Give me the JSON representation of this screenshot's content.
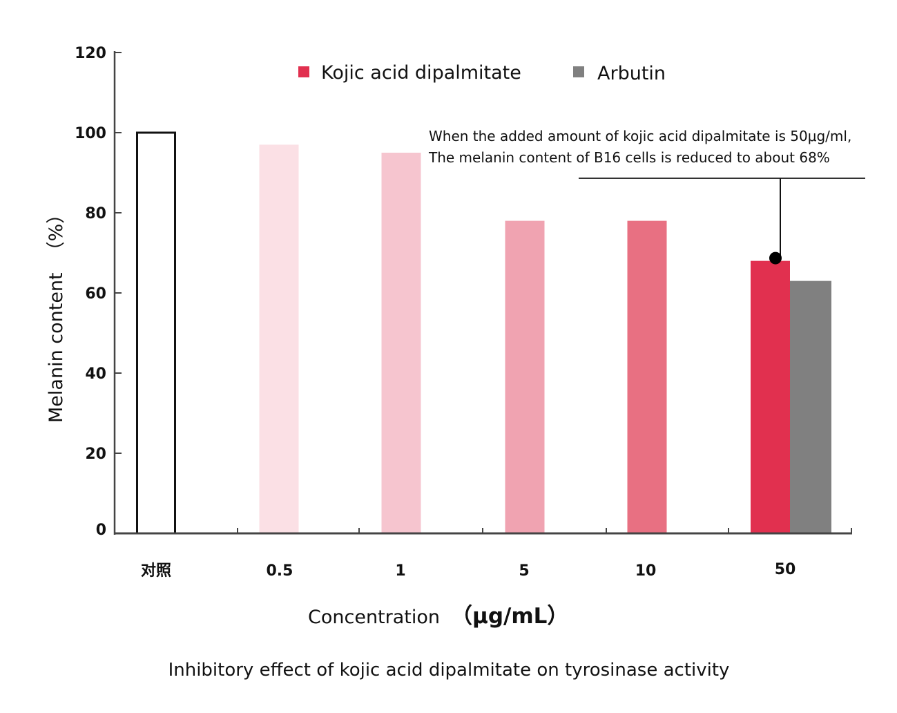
{
  "chart_data": {
    "type": "bar",
    "categories": [
      "对照",
      "0.5",
      "1",
      "5",
      "10",
      "50"
    ],
    "series": [
      {
        "name": "Kojic acid dipalmitate",
        "values": [
          100,
          97,
          95,
          78,
          78,
          68
        ],
        "colors": [
          "#ffffff",
          "#fbe0e5",
          "#f6c5cf",
          "#f0a3b1",
          "#e87082",
          "#e1304f"
        ]
      },
      {
        "name": "Arbutin",
        "values": [
          null,
          null,
          null,
          null,
          null,
          63
        ],
        "colors": [
          "#808080",
          "#808080",
          "#808080",
          "#808080",
          "#808080",
          "#808080"
        ]
      }
    ],
    "ylim": [
      0,
      120
    ],
    "yticks": [
      "0",
      "20",
      "40",
      "60",
      "80",
      "100",
      "120"
    ],
    "ylabel_main": "Melanin content",
    "ylabel_unit": "（%）",
    "xlabel_main": "Concentration",
    "xlabel_unit": "（μg/mL）",
    "legend_position": "top",
    "legend_colors": [
      "#e1304f",
      "#808080"
    ],
    "annotation": {
      "line1": "When the added amount of kojic acid dipalmitate is 50μg/ml,",
      "line2": "The melanin content of B16 cells is reduced to about 68%",
      "category_index": 5,
      "value": 68
    },
    "caption": "Inhibitory effect of kojic acid dipalmitate on tyrosinase activity",
    "grid": false
  }
}
